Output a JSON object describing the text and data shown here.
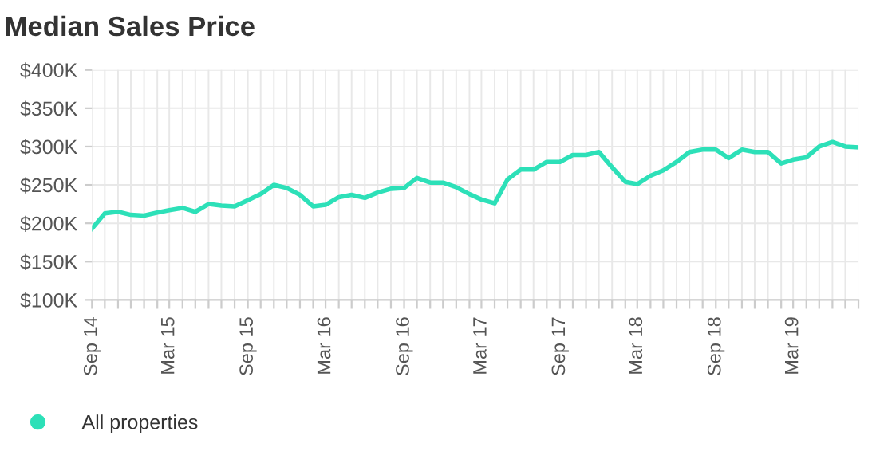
{
  "chart_data": {
    "type": "line",
    "title": "Median Sales Price",
    "x": [
      "2014-09",
      "2014-10",
      "2014-11",
      "2014-12",
      "2015-01",
      "2015-02",
      "2015-03",
      "2015-04",
      "2015-05",
      "2015-06",
      "2015-07",
      "2015-08",
      "2015-09",
      "2015-10",
      "2015-11",
      "2015-12",
      "2016-01",
      "2016-02",
      "2016-03",
      "2016-04",
      "2016-05",
      "2016-06",
      "2016-07",
      "2016-08",
      "2016-09",
      "2016-10",
      "2016-11",
      "2016-12",
      "2017-01",
      "2017-02",
      "2017-03",
      "2017-04",
      "2017-05",
      "2017-06",
      "2017-07",
      "2017-08",
      "2017-09",
      "2017-10",
      "2017-11",
      "2017-12",
      "2018-01",
      "2018-02",
      "2018-03",
      "2018-04",
      "2018-05",
      "2018-06",
      "2018-07",
      "2018-08",
      "2018-09",
      "2018-10",
      "2018-11",
      "2018-12",
      "2019-01",
      "2019-02",
      "2019-03",
      "2019-04",
      "2019-05",
      "2019-06",
      "2019-07",
      "2019-08"
    ],
    "series": [
      {
        "name": "All properties",
        "color": "#2de0b8",
        "values": [
          193,
          213,
          215,
          211,
          210,
          214,
          217,
          220,
          215,
          225,
          223,
          222,
          230,
          238,
          250,
          246,
          237,
          222,
          224,
          234,
          237,
          233,
          240,
          245,
          246,
          259,
          253,
          253,
          247,
          238,
          231,
          226,
          257,
          270,
          270,
          280,
          280,
          289,
          289,
          293,
          273,
          254,
          251,
          262,
          269,
          280,
          293,
          296,
          296,
          285,
          296,
          293,
          293,
          278,
          283,
          286,
          300,
          306,
          300,
          299
        ]
      }
    ],
    "xlim": [
      "2014-09",
      "2019-08"
    ],
    "xticks": [
      {
        "value": "2014-09",
        "label": "Sep 14"
      },
      {
        "value": "2014-10",
        "label": null
      },
      {
        "value": "2014-11",
        "label": null
      },
      {
        "value": "2014-12",
        "label": null
      },
      {
        "value": "2015-01",
        "label": null
      },
      {
        "value": "2015-02",
        "label": null
      },
      {
        "value": "2015-03",
        "label": "Mar 15"
      },
      {
        "value": "2015-04",
        "label": null
      },
      {
        "value": "2015-05",
        "label": null
      },
      {
        "value": "2015-06",
        "label": null
      },
      {
        "value": "2015-07",
        "label": null
      },
      {
        "value": "2015-08",
        "label": null
      },
      {
        "value": "2015-09",
        "label": "Sep 15"
      },
      {
        "value": "2015-10",
        "label": null
      },
      {
        "value": "2015-11",
        "label": null
      },
      {
        "value": "2015-12",
        "label": null
      },
      {
        "value": "2016-01",
        "label": null
      },
      {
        "value": "2016-02",
        "label": null
      },
      {
        "value": "2016-03",
        "label": "Mar 16"
      },
      {
        "value": "2016-04",
        "label": null
      },
      {
        "value": "2016-05",
        "label": null
      },
      {
        "value": "2016-06",
        "label": null
      },
      {
        "value": "2016-07",
        "label": null
      },
      {
        "value": "2016-08",
        "label": null
      },
      {
        "value": "2016-09",
        "label": "Sep 16"
      },
      {
        "value": "2016-10",
        "label": null
      },
      {
        "value": "2016-11",
        "label": null
      },
      {
        "value": "2016-12",
        "label": null
      },
      {
        "value": "2017-01",
        "label": null
      },
      {
        "value": "2017-02",
        "label": null
      },
      {
        "value": "2017-03",
        "label": "Mar 17"
      },
      {
        "value": "2017-04",
        "label": null
      },
      {
        "value": "2017-05",
        "label": null
      },
      {
        "value": "2017-06",
        "label": null
      },
      {
        "value": "2017-07",
        "label": null
      },
      {
        "value": "2017-08",
        "label": null
      },
      {
        "value": "2017-09",
        "label": "Sep 17"
      },
      {
        "value": "2017-10",
        "label": null
      },
      {
        "value": "2017-11",
        "label": null
      },
      {
        "value": "2017-12",
        "label": null
      },
      {
        "value": "2018-01",
        "label": null
      },
      {
        "value": "2018-02",
        "label": null
      },
      {
        "value": "2018-03",
        "label": "Mar 18"
      },
      {
        "value": "2018-04",
        "label": null
      },
      {
        "value": "2018-05",
        "label": null
      },
      {
        "value": "2018-06",
        "label": null
      },
      {
        "value": "2018-07",
        "label": null
      },
      {
        "value": "2018-08",
        "label": null
      },
      {
        "value": "2018-09",
        "label": "Sep 18"
      },
      {
        "value": "2018-10",
        "label": null
      },
      {
        "value": "2018-11",
        "label": null
      },
      {
        "value": "2018-12",
        "label": null
      },
      {
        "value": "2019-01",
        "label": null
      },
      {
        "value": "2019-02",
        "label": null
      },
      {
        "value": "2019-03",
        "label": "Mar 19"
      },
      {
        "value": "2019-04",
        "label": null
      },
      {
        "value": "2019-05",
        "label": null
      },
      {
        "value": "2019-06",
        "label": null
      },
      {
        "value": "2019-07",
        "label": null
      },
      {
        "value": "2019-08",
        "label": null
      }
    ],
    "ylim": [
      100,
      400
    ],
    "yticks": [
      {
        "value": 100,
        "label": "$100K"
      },
      {
        "value": 150,
        "label": "$150K"
      },
      {
        "value": 200,
        "label": "$200K"
      },
      {
        "value": 250,
        "label": "$250K"
      },
      {
        "value": 300,
        "label": "$300K"
      },
      {
        "value": 350,
        "label": "$350K"
      },
      {
        "value": 400,
        "label": "$400K"
      }
    ],
    "grid": true,
    "legend": "bottom left",
    "marker": "none",
    "line_style": "solid"
  }
}
